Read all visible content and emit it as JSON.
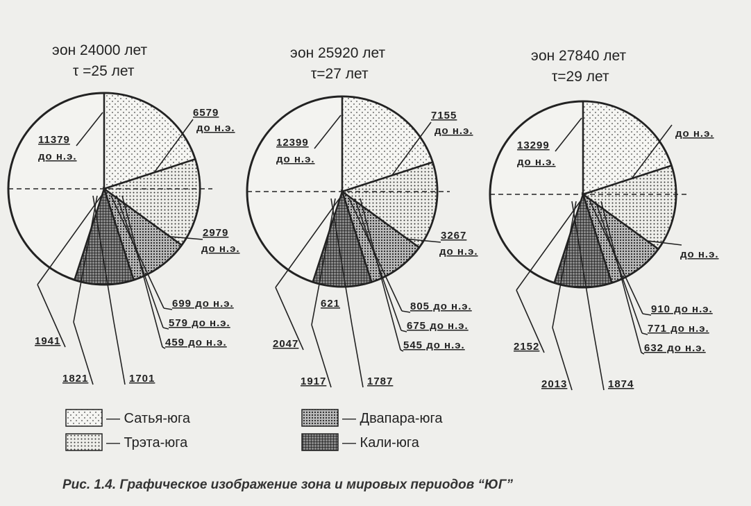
{
  "diagrams": [
    {
      "title": "эон 24000 лет",
      "subtitle": "τ =25 лет",
      "satya_start": {
        "number": "11379",
        "era": "до н.э."
      },
      "treta_start": {
        "number": "6579",
        "era": "до н.э."
      },
      "dvapara_start": {
        "number": "2979",
        "era": "до н.э."
      },
      "kali_bce": [
        "699 до н.э.",
        "579 до н.э.",
        "459 до н.э."
      ],
      "kali_end": [
        "1941",
        "1821",
        "1701"
      ]
    },
    {
      "title": "эон 25920 лет",
      "subtitle": "τ=27 лет",
      "satya_start": {
        "number": "12399",
        "era": "до н.э."
      },
      "treta_start": {
        "number": "7155",
        "era": "до н.э."
      },
      "dvapara_start": {
        "number": "3267",
        "era": "до н.э."
      },
      "kali_bce": [
        "805 до н.э.",
        "675 до н.э.",
        "545 до н.э."
      ],
      "kali_end": [
        "2047",
        "1917",
        "1787"
      ],
      "note": "621"
    },
    {
      "title": "эон 27840 лет",
      "subtitle": "τ=29 лет",
      "satya_start": {
        "number": "13299",
        "era": "до н.э."
      },
      "treta_start": {
        "era": "до н.э."
      },
      "dvapara_start": {
        "era": "до н.э."
      },
      "kali_bce": [
        "910 до н.э.",
        "771 до н.э.",
        "632 до н.э."
      ],
      "kali_end": [
        "2152",
        "2013",
        "1874"
      ]
    }
  ],
  "legend": [
    "— Сатья-юга",
    "— Трэта-юга",
    "— Двапара-юга",
    "— Кали-юга"
  ],
  "caption": "Рис. 1.4.  Графическое изображение зона и мировых периодов “ЮГ”"
}
